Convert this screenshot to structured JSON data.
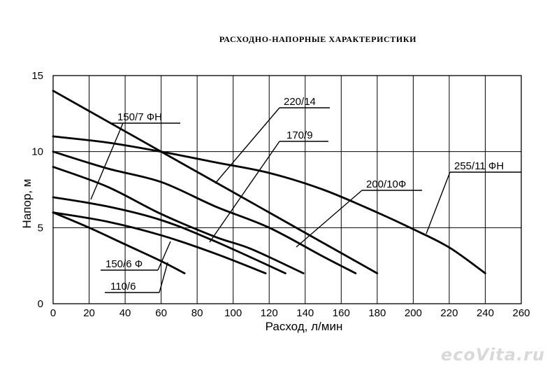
{
  "chart_data": {
    "type": "line",
    "title": "РАСХОДНО-НАПОРНЫЕ  ХАРАКТЕРИСТИКИ",
    "xlabel": "Расход, л/мин",
    "ylabel": "Напор, м",
    "xlim": [
      0,
      260
    ],
    "ylim": [
      0,
      15
    ],
    "xticks": [
      "0",
      "20",
      "40",
      "60",
      "80",
      "100",
      "120",
      "140",
      "160",
      "180",
      "200",
      "220",
      "240",
      "260"
    ],
    "yticks": [
      "0",
      "5",
      "10",
      "15"
    ],
    "grid": true,
    "series": [
      {
        "name": "110/6",
        "x": [
          0,
          20,
          40,
          60,
          73
        ],
        "y": [
          6.0,
          5.0,
          3.9,
          2.8,
          2.0
        ]
      },
      {
        "name": "150/6 Ф",
        "x": [
          0,
          30,
          60,
          90,
          118
        ],
        "y": [
          6.0,
          5.4,
          4.5,
          3.3,
          2.0
        ]
      },
      {
        "name": "150/7 ФН",
        "x": [
          0,
          30,
          60,
          90,
          129
        ],
        "y": [
          7.0,
          6.4,
          5.5,
          4.1,
          2.0
        ]
      },
      {
        "name": "170/9",
        "x": [
          0,
          30,
          60,
          90,
          110,
          139
        ],
        "y": [
          9.0,
          7.7,
          5.9,
          4.4,
          3.6,
          2.0
        ]
      },
      {
        "name": "200/10Ф",
        "x": [
          0,
          30,
          60,
          90,
          120,
          150,
          168
        ],
        "y": [
          10.0,
          8.9,
          8.0,
          6.4,
          5.0,
          3.1,
          2.0
        ]
      },
      {
        "name": "220/14",
        "x": [
          0,
          30,
          60,
          90,
          120,
          150,
          180
        ],
        "y": [
          14.0,
          12.0,
          10.0,
          8.0,
          6.0,
          4.0,
          2.0
        ]
      },
      {
        "name": "255/11 ФН",
        "x": [
          0,
          30,
          60,
          90,
          120,
          150,
          180,
          200,
          220,
          240
        ],
        "y": [
          11.0,
          10.6,
          10.0,
          9.3,
          8.6,
          7.5,
          6.0,
          4.9,
          3.7,
          2.0
        ]
      }
    ],
    "labels": [
      "150/7 ФН",
      "220/14",
      "170/9",
      "200/10Ф",
      "255/11 ФН",
      "150/6 Ф",
      "110/6"
    ]
  },
  "watermark": "ecoVita.ru"
}
